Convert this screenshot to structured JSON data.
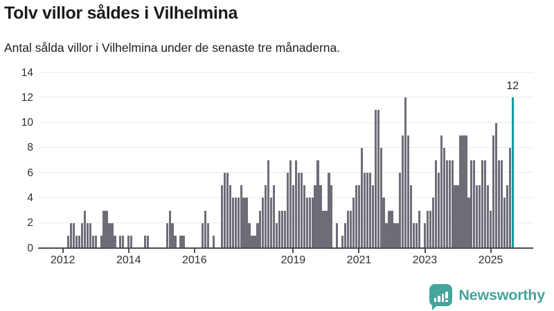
{
  "header": {
    "title": "Tolv villor såldes i Vilhelmina",
    "subtitle": "Antal sålda villor i Vilhelmina under de senaste tre månaderna."
  },
  "chart_data": {
    "type": "bar",
    "title": "Tolv villor såldes i Vilhelmina",
    "subtitle": "Antal sålda villor i Vilhelmina under de senaste tre månaderna.",
    "ylabel": "",
    "xlabel": "",
    "ylim": [
      0,
      14
    ],
    "yticks": [
      0,
      2,
      4,
      6,
      8,
      10,
      12,
      14
    ],
    "grid": true,
    "bar_color": "#6d6d78",
    "highlight_color": "#0a9ea0",
    "start_month": "2011-05",
    "end_month": "2025-09",
    "x_total_slots": 180,
    "years": [
      {
        "year": 2011,
        "from_month": 5,
        "values": [
          0,
          0,
          0,
          0,
          0,
          0,
          0,
          0
        ]
      },
      {
        "year": 2012,
        "values": [
          0,
          0,
          1,
          2,
          2,
          1,
          1,
          2,
          3,
          2,
          2,
          1
        ]
      },
      {
        "year": 2013,
        "values": [
          1,
          0,
          1,
          3,
          3,
          2,
          2,
          1,
          0,
          1,
          1,
          0
        ]
      },
      {
        "year": 2014,
        "values": [
          1,
          1,
          0,
          0,
          0,
          0,
          1,
          1,
          0,
          0,
          0,
          0
        ]
      },
      {
        "year": 2015,
        "values": [
          0,
          0,
          2,
          3,
          2,
          1,
          0,
          1,
          1,
          0,
          0,
          0
        ]
      },
      {
        "year": 2016,
        "values": [
          0,
          0,
          0,
          2,
          3,
          2,
          0,
          1,
          0,
          0,
          5,
          6
        ]
      },
      {
        "year": 2017,
        "values": [
          6,
          5,
          4,
          4,
          4,
          5,
          4,
          4,
          2,
          1,
          1,
          2
        ]
      },
      {
        "year": 2018,
        "values": [
          3,
          4,
          5,
          7,
          4,
          5,
          2,
          3,
          3,
          3,
          6,
          7
        ]
      },
      {
        "year": 2019,
        "values": [
          5,
          7,
          6,
          6,
          5,
          4,
          4,
          4,
          5,
          7,
          5,
          3
        ]
      },
      {
        "year": 2020,
        "values": [
          3,
          6,
          5,
          0,
          2,
          0,
          1,
          2,
          3,
          3,
          4,
          5
        ]
      },
      {
        "year": 2021,
        "values": [
          5,
          8,
          6,
          6,
          6,
          5,
          11,
          11,
          8,
          4,
          2,
          3
        ]
      },
      {
        "year": 2022,
        "values": [
          3,
          2,
          2,
          6,
          9,
          12,
          9,
          5,
          2,
          2,
          3,
          0
        ]
      },
      {
        "year": 2023,
        "values": [
          2,
          3,
          3,
          4,
          7,
          6,
          9,
          8,
          7,
          7,
          7,
          5
        ]
      },
      {
        "year": 2024,
        "values": [
          5,
          9,
          9,
          9,
          4,
          7,
          7,
          5,
          5,
          7,
          7,
          5
        ]
      },
      {
        "year": 2025,
        "values": [
          3,
          9,
          10,
          7,
          7,
          4,
          5,
          8,
          12
        ]
      }
    ],
    "xticks": [
      {
        "label": "2012",
        "month_index": 8
      },
      {
        "label": "2014",
        "month_index": 32
      },
      {
        "label": "2016",
        "month_index": 56
      },
      {
        "label": "2019",
        "month_index": 92
      },
      {
        "label": "2021",
        "month_index": 116
      },
      {
        "label": "2023",
        "month_index": 140
      },
      {
        "label": "2025",
        "month_index": 164
      }
    ],
    "highlight": {
      "label": "12",
      "value": 12,
      "month": "2025-09"
    },
    "legend": null
  },
  "footer": {
    "brand": "Newsworthy",
    "brand_color": "#45a49c"
  }
}
